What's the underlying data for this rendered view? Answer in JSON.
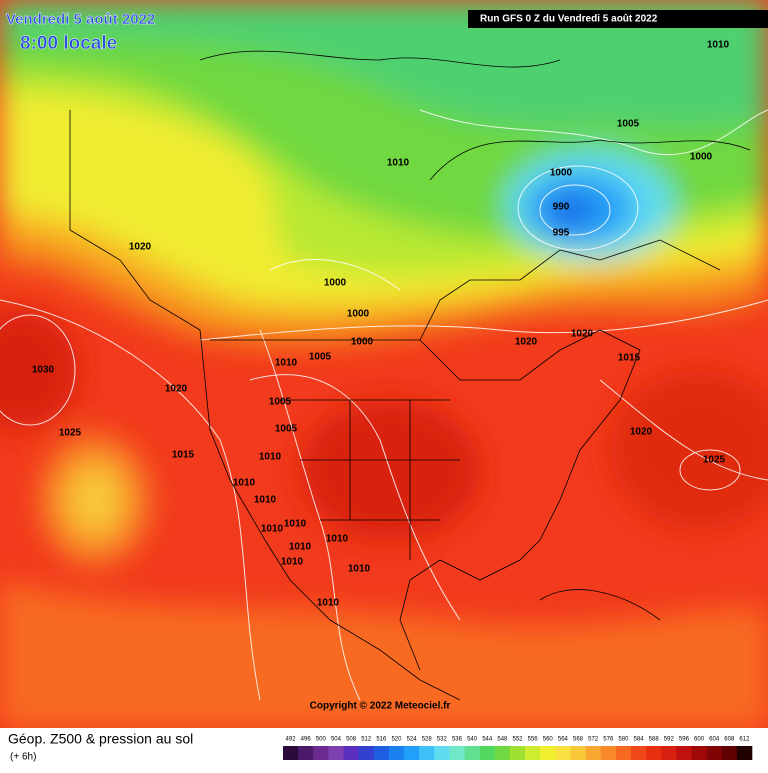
{
  "header": {
    "date": "Vendredi 5 août 2022",
    "time": "8:00 locale",
    "run": "Run GFS 0 Z du Vendredi 5 août 2022"
  },
  "isobar_labels": [
    "1010",
    "1005",
    "1000",
    "1010",
    "1000",
    "990",
    "995",
    "1020",
    "1000",
    "1000",
    "1000",
    "1020",
    "1020",
    "1010",
    "1005",
    "1015",
    "1030",
    "1020",
    "1005",
    "1025",
    "1005",
    "1020",
    "1015",
    "1010",
    "1025",
    "1010",
    "1010",
    "1010",
    "1010",
    "1010",
    "1010",
    "1010",
    "1010",
    "1010"
  ],
  "copyright": "Copyright © 2022 Meteociel.fr",
  "footer": {
    "title": "Géop. Z500 & pression au sol",
    "subtitle": "(+ 6h)"
  },
  "legend": {
    "scale": [
      492,
      496,
      500,
      504,
      508,
      512,
      516,
      520,
      524,
      528,
      532,
      536,
      540,
      544,
      548,
      552,
      556,
      560,
      564,
      568,
      572,
      576,
      580,
      584,
      588,
      592,
      596,
      600,
      604,
      608,
      612
    ],
    "colors": [
      "#2a0a3a",
      "#4b1a6a",
      "#6a2a8f",
      "#7e3fb0",
      "#5a2fc0",
      "#3340d0",
      "#1f5ee0",
      "#1b80f0",
      "#20a0f8",
      "#3fc0f8",
      "#60dcf0",
      "#70e8c8",
      "#60e090",
      "#50d860",
      "#70d840",
      "#a0e030",
      "#d0ec30",
      "#f0f030",
      "#f8e040",
      "#f8c838",
      "#f8a830",
      "#f88828",
      "#f86820",
      "#f04818",
      "#e83010",
      "#d82010",
      "#c01010",
      "#a00808",
      "#800404",
      "#600000",
      "#200000"
    ]
  }
}
